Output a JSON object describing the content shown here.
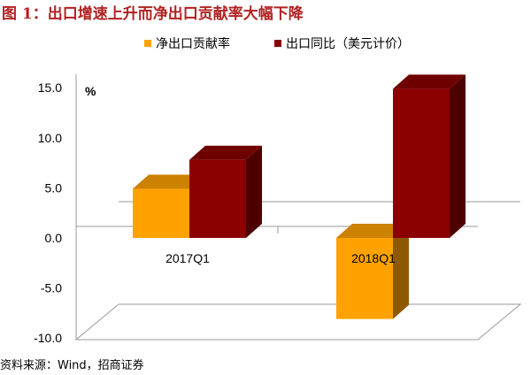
{
  "figure": {
    "title": "图 1：出口增速上升而净出口贡献率大幅下降",
    "source": "资料来源：Wind，招商证券"
  },
  "chart_data": {
    "type": "bar",
    "categories": [
      "2017Q1",
      "2018Q1"
    ],
    "series": [
      {
        "name": "净出口贡献率",
        "values": [
          4.9,
          -8.1
        ],
        "color": "#ffa200"
      },
      {
        "name": "出口同比（美元计价）",
        "values": [
          7.8,
          14.9
        ],
        "color": "#8b0000"
      }
    ],
    "unit_label": "%",
    "ylim": [
      -10,
      15
    ],
    "yticks": [
      "15.0",
      "10.0",
      "5.0",
      "0.0",
      "-5.0",
      "-10.0"
    ],
    "ytick_values": [
      15,
      10,
      5,
      0,
      -5,
      -10
    ],
    "legend_position": "top",
    "grid": false,
    "style": "3d-bar"
  }
}
